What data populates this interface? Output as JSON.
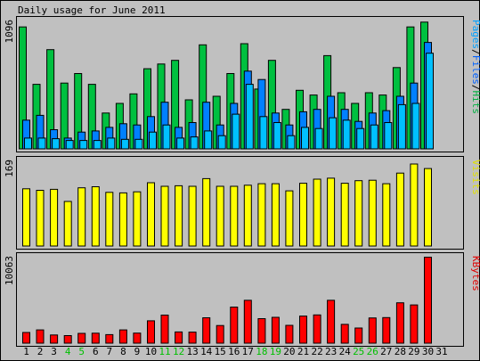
{
  "chart_data": {
    "type": "bar",
    "title": "Daily usage for June 2011",
    "categories": [
      "1",
      "2",
      "3",
      "4",
      "5",
      "6",
      "7",
      "8",
      "9",
      "10",
      "11",
      "12",
      "13",
      "14",
      "15",
      "16",
      "17",
      "18",
      "19",
      "20",
      "21",
      "22",
      "23",
      "24",
      "25",
      "26",
      "27",
      "28",
      "29",
      "30",
      "31"
    ],
    "weekend_days": [
      "4",
      "5",
      "11",
      "12",
      "18",
      "19",
      "25",
      "26"
    ],
    "colors": {
      "background": "#c0c0c0",
      "panel": "#c0c0c0",
      "hits": "#00c040",
      "files": "#0080ff",
      "pages": "#00c0ff",
      "visits": "#ffff00",
      "kbytes": "#ff0000",
      "weekend_label": "#00c000",
      "weekday_label": "#000000"
    },
    "panels": [
      {
        "ymax_label": "1096",
        "ymax": 1096,
        "legend": [
          {
            "text": "Pages",
            "color": "#00a0ff"
          },
          {
            "text": "/",
            "color": "#000000"
          },
          {
            "text": "Files",
            "color": "#0060ff"
          },
          {
            "text": "/",
            "color": "#000000"
          },
          {
            "text": "Hits",
            "color": "#00b040"
          }
        ],
        "series": [
          {
            "name": "Hits",
            "color": "#00c040",
            "values": [
              1020,
              540,
              830,
              550,
              630,
              540,
              300,
              380,
              460,
              670,
              710,
              740,
              410,
              870,
              440,
              630,
              880,
              500,
              740,
              330,
              490,
              450,
              780,
              470,
              380,
              470,
              450,
              680,
              1020,
              1060,
              0
            ]
          },
          {
            "name": "Files",
            "color": "#0080ff",
            "values": [
              240,
              280,
              160,
              90,
              140,
              150,
              180,
              210,
              200,
              270,
              390,
              180,
              220,
              390,
              200,
              380,
              650,
              580,
              300,
              200,
              310,
              330,
              440,
              330,
              230,
              300,
              320,
              440,
              550,
              890,
              0
            ]
          },
          {
            "name": "Pages",
            "color": "#00c0ff",
            "values": [
              90,
              90,
              85,
              70,
              70,
              70,
              90,
              80,
              80,
              140,
              200,
              90,
              100,
              150,
              110,
              290,
              540,
              270,
              220,
              110,
              180,
              170,
              260,
              240,
              170,
              200,
              220,
              370,
              380,
              800,
              0
            ]
          }
        ]
      },
      {
        "ymax_label": "169",
        "ymax": 169,
        "legend": [
          {
            "text": "Visits",
            "color": "#e0e000"
          }
        ],
        "series": [
          {
            "name": "Visits",
            "color": "#ffff00",
            "values": [
              113,
              110,
              112,
              88,
              115,
              117,
              106,
              105,
              107,
              125,
              118,
              119,
              118,
              133,
              118,
              118,
              120,
              123,
              123,
              109,
              124,
              132,
              134,
              124,
              129,
              130,
              123,
              144,
              162,
              153,
              0
            ]
          }
        ]
      },
      {
        "ymax_label": "10063",
        "ymax": 10063,
        "legend": [
          {
            "text": "KBytes",
            "color": "#e00000"
          }
        ],
        "series": [
          {
            "name": "KBytes",
            "color": "#ff0000",
            "values": [
              1230,
              1530,
              940,
              870,
              1130,
              1150,
              990,
              1530,
              1160,
              2580,
              3230,
              1290,
              1270,
              2930,
              2030,
              4160,
              4940,
              2820,
              2980,
              2050,
              3120,
              3250,
              4940,
              2170,
              1750,
              2910,
              2950,
              4650,
              4410,
              9900,
              0
            ]
          }
        ]
      }
    ]
  }
}
